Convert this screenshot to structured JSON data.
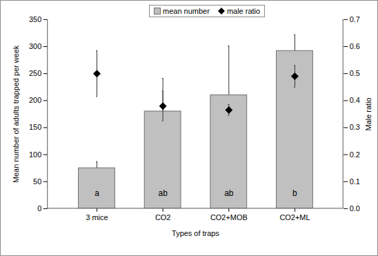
{
  "chart_data": {
    "type": "bar",
    "x_label": "Types of traps",
    "y_label": "Mean number of adults trapped per week",
    "y2_label": "Male ratio",
    "categories": [
      "3 mice",
      "CO2",
      "CO2+MOB",
      "CO2+ML"
    ],
    "series": [
      {
        "name": "mean number",
        "type": "bar",
        "color": "#c0c0c0",
        "values": [
          75,
          180,
          210,
          292
        ],
        "errors": [
          12,
          61,
          91,
          30
        ]
      },
      {
        "name": "male ratio",
        "type": "scatter",
        "axis": "y2",
        "marker": "diamond",
        "color": "#000000",
        "values": [
          0.5,
          0.38,
          0.365,
          0.49
        ],
        "errors": [
          0.085,
          0.055,
          0.02,
          0.04
        ]
      }
    ],
    "group_letters": [
      "a",
      "ab",
      "ab",
      "b"
    ],
    "ylim": [
      0,
      350
    ],
    "yticks": [
      0,
      50,
      100,
      150,
      200,
      250,
      300,
      350
    ],
    "y2lim": [
      0,
      0.7
    ],
    "y2ticks": [
      {
        "value": 0,
        "label": "0.0"
      },
      0.1,
      0.2,
      0.3,
      0.4,
      0.5,
      0.6,
      0.7
    ],
    "legend": "top"
  }
}
